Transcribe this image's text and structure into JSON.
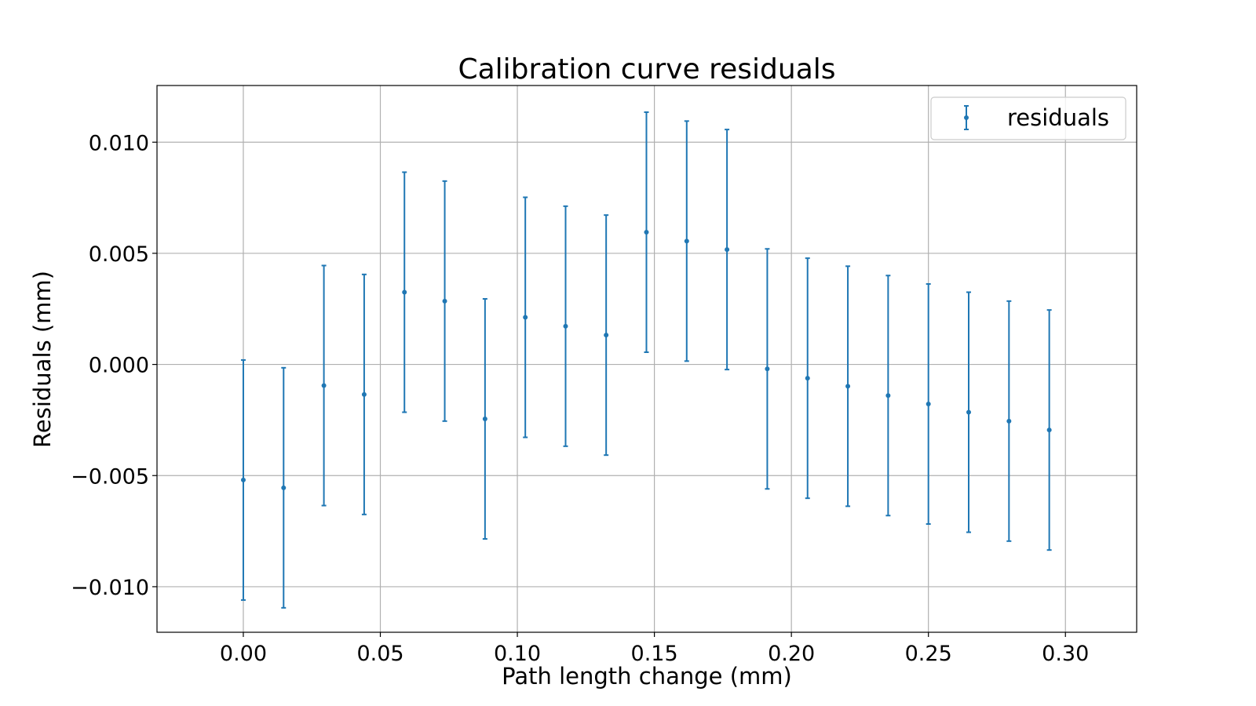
{
  "chart_data": {
    "type": "scatter",
    "title": "Calibration curve residuals",
    "xlabel": "Path length change (mm)",
    "ylabel": "Residuals (mm)",
    "xlim": [
      -0.0315,
      0.326
    ],
    "ylim": [
      -0.01205,
      0.01255
    ],
    "xticks": [
      0.0,
      0.05,
      0.1,
      0.15,
      0.2,
      0.25,
      0.3
    ],
    "xtick_labels": [
      "0.00",
      "0.05",
      "0.10",
      "0.15",
      "0.20",
      "0.25",
      "0.30"
    ],
    "yticks": [
      -0.01,
      -0.005,
      0.0,
      0.005,
      0.01
    ],
    "ytick_labels": [
      "−0.010",
      "−0.005",
      "0.000",
      "0.005",
      "0.010"
    ],
    "grid": true,
    "legend_position": "top-right",
    "color": "#1f77b4",
    "series": [
      {
        "name": "residuals",
        "x": [
          0.0,
          0.0147,
          0.0294,
          0.0441,
          0.0588,
          0.0735,
          0.0882,
          0.1029,
          0.1176,
          0.1324,
          0.1471,
          0.1618,
          0.1765,
          0.1912,
          0.2059,
          0.2206,
          0.2353,
          0.25,
          0.2647,
          0.2794,
          0.2941
        ],
        "y": [
          -0.0052,
          -0.00555,
          -0.00095,
          -0.00135,
          0.00325,
          0.00285,
          -0.00245,
          0.00212,
          0.00172,
          0.00132,
          0.00595,
          0.00555,
          0.00517,
          -0.0002,
          -0.00062,
          -0.00098,
          -0.0014,
          -0.00178,
          -0.00215,
          -0.00255,
          -0.00295
        ],
        "yerr": [
          0.0054,
          0.0054,
          0.0054,
          0.0054,
          0.0054,
          0.0054,
          0.0054,
          0.0054,
          0.0054,
          0.0054,
          0.0054,
          0.0054,
          0.0054,
          0.0054,
          0.0054,
          0.0054,
          0.0054,
          0.0054,
          0.0054,
          0.0054,
          0.0054
        ]
      }
    ]
  }
}
